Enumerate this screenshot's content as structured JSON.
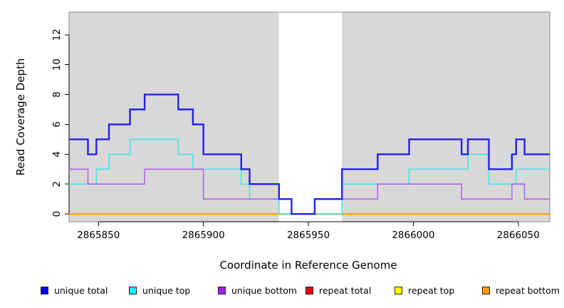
{
  "chart_data": {
    "type": "step",
    "title": "",
    "xlabel": "Coordinate in Reference Genome",
    "ylabel": "Read Coverage Depth",
    "xlim": [
      2865836,
      2866065
    ],
    "ylim": [
      0,
      13
    ],
    "x_ticks": [
      2865850,
      2865900,
      2865950,
      2866000,
      2866050
    ],
    "y_ticks": [
      0,
      2,
      4,
      6,
      8,
      10,
      12
    ],
    "grid": false,
    "plot_background": "#d8d8d8",
    "unshaded_region": [
      2865936,
      2865966
    ],
    "x_end": 2866065,
    "series": [
      {
        "name": "repeat total",
        "color": "#e60000",
        "width": 2,
        "steps": [
          [
            2865836,
            0
          ]
        ]
      },
      {
        "name": "repeat top",
        "color": "#ffff00",
        "width": 2,
        "steps": [
          [
            2865836,
            0
          ]
        ]
      },
      {
        "name": "repeat bottom",
        "color": "#ff9f00",
        "width": 2,
        "steps": [
          [
            2865836,
            0
          ]
        ]
      },
      {
        "name": "unique top",
        "color": "#43e8e8",
        "width": 1.6,
        "steps": [
          [
            2865836,
            2
          ],
          [
            2865849,
            3
          ],
          [
            2865855,
            4
          ],
          [
            2865865,
            5
          ],
          [
            2865888,
            4
          ],
          [
            2865895,
            3
          ],
          [
            2865918,
            2
          ],
          [
            2865922,
            1
          ],
          [
            2865936,
            0
          ],
          [
            2865966,
            2
          ],
          [
            2865998,
            3
          ],
          [
            2866026,
            4
          ],
          [
            2866036,
            2
          ],
          [
            2866049,
            3
          ]
        ]
      },
      {
        "name": "unique bottom",
        "color": "#b264e8",
        "width": 1.6,
        "steps": [
          [
            2865836,
            3
          ],
          [
            2865845,
            2
          ],
          [
            2865872,
            3
          ],
          [
            2865900,
            1
          ],
          [
            2865942,
            0
          ],
          [
            2865953,
            1
          ],
          [
            2865983,
            2
          ],
          [
            2866023,
            1
          ],
          [
            2866047,
            2
          ],
          [
            2866053,
            1
          ]
        ]
      },
      {
        "name": "unique total",
        "color": "#2121ea",
        "width": 2.4,
        "steps": [
          [
            2865836,
            5
          ],
          [
            2865845,
            4
          ],
          [
            2865849,
            5
          ],
          [
            2865855,
            6
          ],
          [
            2865865,
            7
          ],
          [
            2865872,
            8
          ],
          [
            2865888,
            7
          ],
          [
            2865895,
            6
          ],
          [
            2865900,
            4
          ],
          [
            2865918,
            3
          ],
          [
            2865922,
            2
          ],
          [
            2865936,
            1
          ],
          [
            2865942,
            0
          ],
          [
            2865953,
            1
          ],
          [
            2865966,
            3
          ],
          [
            2865983,
            4
          ],
          [
            2865998,
            5
          ],
          [
            2866023,
            4
          ],
          [
            2866026,
            5
          ],
          [
            2866036,
            3
          ],
          [
            2866047,
            4
          ],
          [
            2866049,
            5
          ],
          [
            2866053,
            4
          ]
        ]
      }
    ],
    "legend": [
      {
        "label": "unique total",
        "color": "#0000ee"
      },
      {
        "label": "unique top",
        "color": "#00ffff"
      },
      {
        "label": "unique bottom",
        "color": "#a020f0"
      },
      {
        "label": "repeat total",
        "color": "#e60000"
      },
      {
        "label": "repeat top",
        "color": "#ffff00"
      },
      {
        "label": "repeat bottom",
        "color": "#ffa000"
      }
    ]
  }
}
